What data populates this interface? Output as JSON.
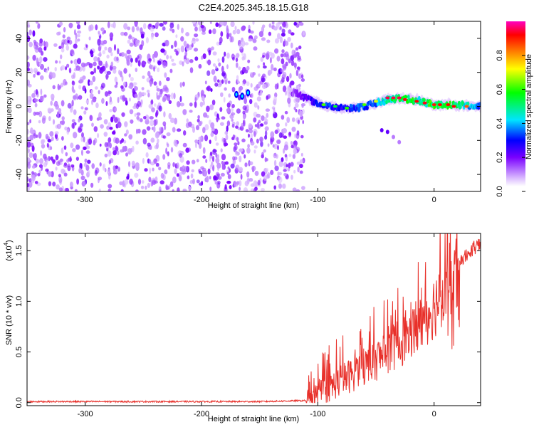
{
  "title": "C2E4.2025.345.18.15.G18",
  "chart_data": [
    {
      "type": "heatmap",
      "title": "C2E4.2025.345.18.15.G18",
      "xlabel": "Height of straight line (km)",
      "ylabel": "Frequency (Hz)",
      "xlim": [
        -350,
        40
      ],
      "ylim": [
        -50,
        50
      ],
      "xticks": [
        -300,
        -200,
        -100,
        0
      ],
      "yticks": [
        -40,
        -20,
        0,
        20,
        40
      ],
      "xtick_labels": [
        "-300",
        "-200",
        "-100",
        "0"
      ],
      "ytick_labels": [
        "-40",
        "-20",
        "0",
        "20",
        "40"
      ],
      "noise_region_x": [
        -350,
        -112
      ],
      "signal_trace": {
        "x": [
          -170,
          -160,
          -120,
          -110,
          -100,
          -90,
          -80,
          -70,
          -60,
          -50,
          -40,
          -30,
          -20,
          -10,
          0,
          10,
          20,
          30,
          40
        ],
        "frequency": [
          7,
          7,
          8,
          5,
          2,
          0,
          -1,
          -1,
          0,
          2,
          4,
          5,
          4,
          3,
          1,
          1,
          1,
          0,
          0
        ],
        "amplitude": [
          0.3,
          0.3,
          0.25,
          0.35,
          0.45,
          0.5,
          0.45,
          0.5,
          0.55,
          0.6,
          0.75,
          0.9,
          0.85,
          0.75,
          0.9,
          0.85,
          0.8,
          0.65,
          0.55
        ]
      },
      "secondary_trace": {
        "x": [
          -45,
          -40,
          -35,
          -30
        ],
        "frequency": [
          -14,
          -15,
          -18,
          -21
        ]
      },
      "colorbar": {
        "label": "Normalized spectral amplitude",
        "range": [
          0,
          1
        ],
        "ticks": [
          0.0,
          0.2,
          0.4,
          0.6,
          0.8
        ],
        "tick_labels": [
          "0.0",
          "0.2",
          "0.4",
          "0.6",
          "0.8"
        ],
        "colors": [
          "#ffffff",
          "#d9b8ff",
          "#7a00ff",
          "#0000ff",
          "#00e5ff",
          "#00ff00",
          "#ffff00",
          "#ff8000",
          "#ff0000",
          "#ff00c0"
        ]
      }
    },
    {
      "type": "line",
      "xlabel": "Height of straight line (km)",
      "ylabel": "SNR (10 * v/v)",
      "scale_label": "(x10",
      "scale_exp": "4",
      "scale_close": ")",
      "xlim": [
        -350,
        40
      ],
      "ylim": [
        -0.03,
        1.67
      ],
      "xticks": [
        -300,
        -200,
        -100,
        0
      ],
      "xtick_labels": [
        "-300",
        "-200",
        "-100",
        "0"
      ],
      "yticks": [
        0.0,
        0.5,
        1.0,
        1.5
      ],
      "ytick_labels": [
        "0.0",
        "0.5",
        "1.0",
        "1.5"
      ],
      "color": "#e8302a",
      "series": [
        {
          "name": "SNR",
          "x": [
            -350,
            -300,
            -250,
            -200,
            -150,
            -110,
            -100,
            -90,
            -80,
            -70,
            -60,
            -50,
            -40,
            -30,
            -20,
            -10,
            0,
            10,
            20,
            30,
            40
          ],
          "values": [
            0.01,
            0.01,
            0.01,
            0.01,
            0.01,
            0.02,
            0.08,
            0.15,
            0.22,
            0.28,
            0.35,
            0.42,
            0.5,
            0.58,
            0.68,
            0.8,
            0.95,
            1.15,
            1.35,
            1.5,
            1.55
          ]
        }
      ]
    }
  ]
}
